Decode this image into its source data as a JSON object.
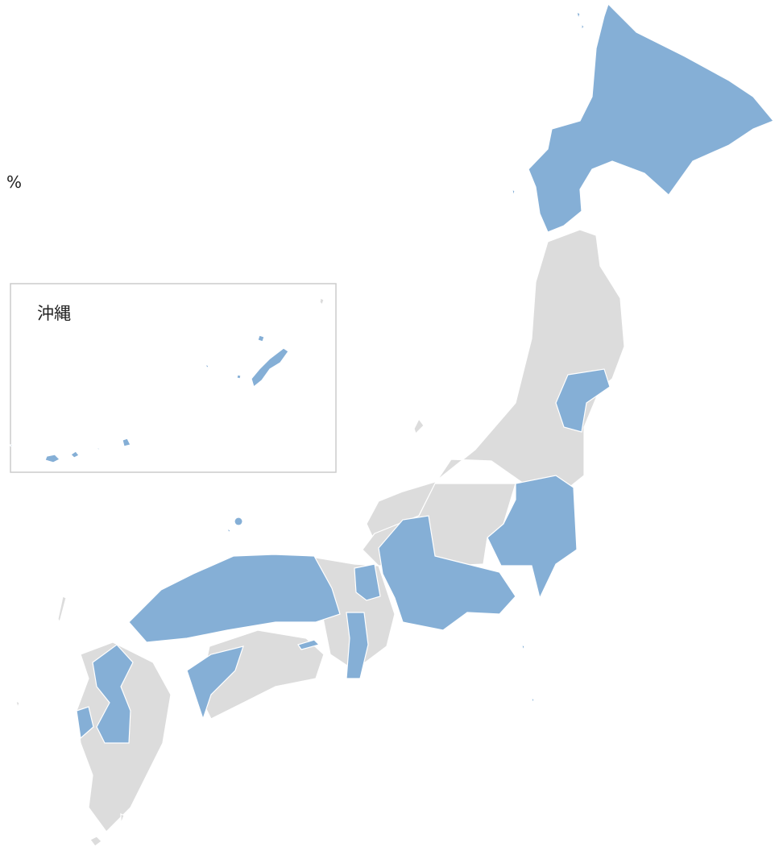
{
  "legend": {
    "unit": "%"
  },
  "inset": {
    "label": "沖縄"
  }
}
